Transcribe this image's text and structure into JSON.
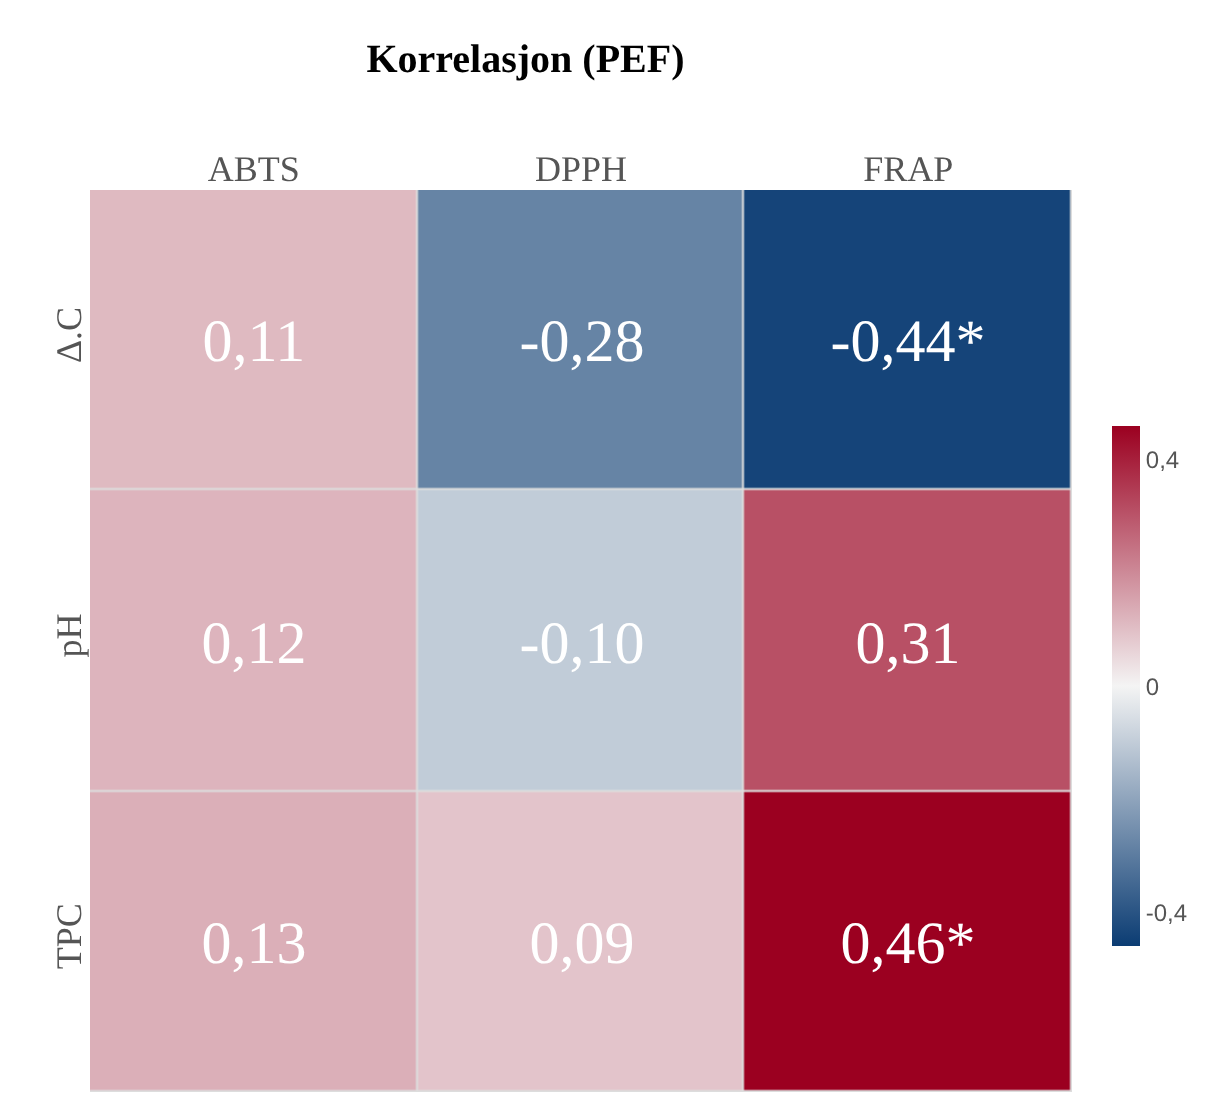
{
  "chart_data": {
    "type": "heatmap",
    "title": "Korrelasjon (PEF)",
    "categories": [
      "ABTS",
      "DPPH",
      "FRAP"
    ],
    "y_categories": [
      "Δ.C",
      "pH",
      "TPC"
    ],
    "cells": [
      [
        0.11,
        -0.28,
        -0.44
      ],
      [
        0.12,
        -0.1,
        0.31
      ],
      [
        0.13,
        0.09,
        0.46
      ]
    ],
    "cell_labels": [
      [
        "0,11",
        "-0,28",
        "-0,44*"
      ],
      [
        "0,12",
        "-0,10",
        "0,31"
      ],
      [
        "0,13",
        "0,09",
        "0,46*"
      ]
    ],
    "clim": [
      -0.46,
      0.46
    ],
    "cticks": [
      {
        "value": 0.4,
        "label": "0,4"
      },
      {
        "value": 0,
        "label": "0"
      },
      {
        "value": -0.4,
        "label": "-0,4"
      }
    ],
    "colors": [
      "#0b3c73",
      "#f4f4f4",
      "#9b0020"
    ]
  }
}
